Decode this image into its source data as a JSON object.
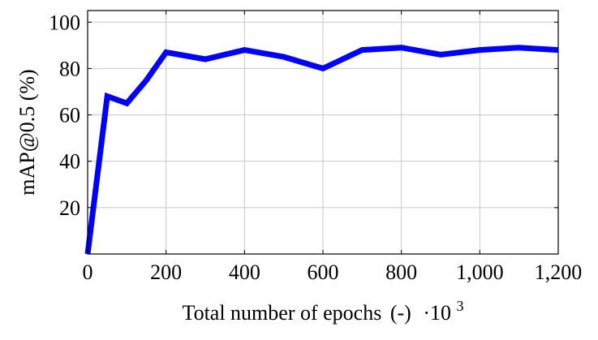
{
  "chart_data": {
    "type": "line",
    "title": "",
    "xlabel": "Total number of epochs",
    "xlabel_unit": "(-)",
    "x_multiplier_base": "·10",
    "x_multiplier_exp": "3",
    "ylabel": "mAP@0.5 (%)",
    "xlim": [
      0,
      1200
    ],
    "ylim": [
      0,
      105
    ],
    "xticks": [
      0,
      200,
      400,
      600,
      800,
      1000,
      1200
    ],
    "xtick_labels": [
      "0",
      "200",
      "400",
      "600",
      "800",
      "1,000",
      "1,200"
    ],
    "yticks": [
      20,
      40,
      60,
      80,
      100
    ],
    "ytick_labels": [
      "20",
      "40",
      "60",
      "80",
      "100"
    ],
    "grid": true,
    "series": [
      {
        "color": "#0000ff",
        "x": [
          0,
          50,
          100,
          150,
          200,
          300,
          400,
          500,
          600,
          700,
          800,
          900,
          1000,
          1100,
          1200
        ],
        "y": [
          0,
          68,
          65,
          75,
          87,
          84,
          88,
          85,
          80,
          88,
          89,
          86,
          88,
          89,
          88
        ]
      }
    ]
  }
}
